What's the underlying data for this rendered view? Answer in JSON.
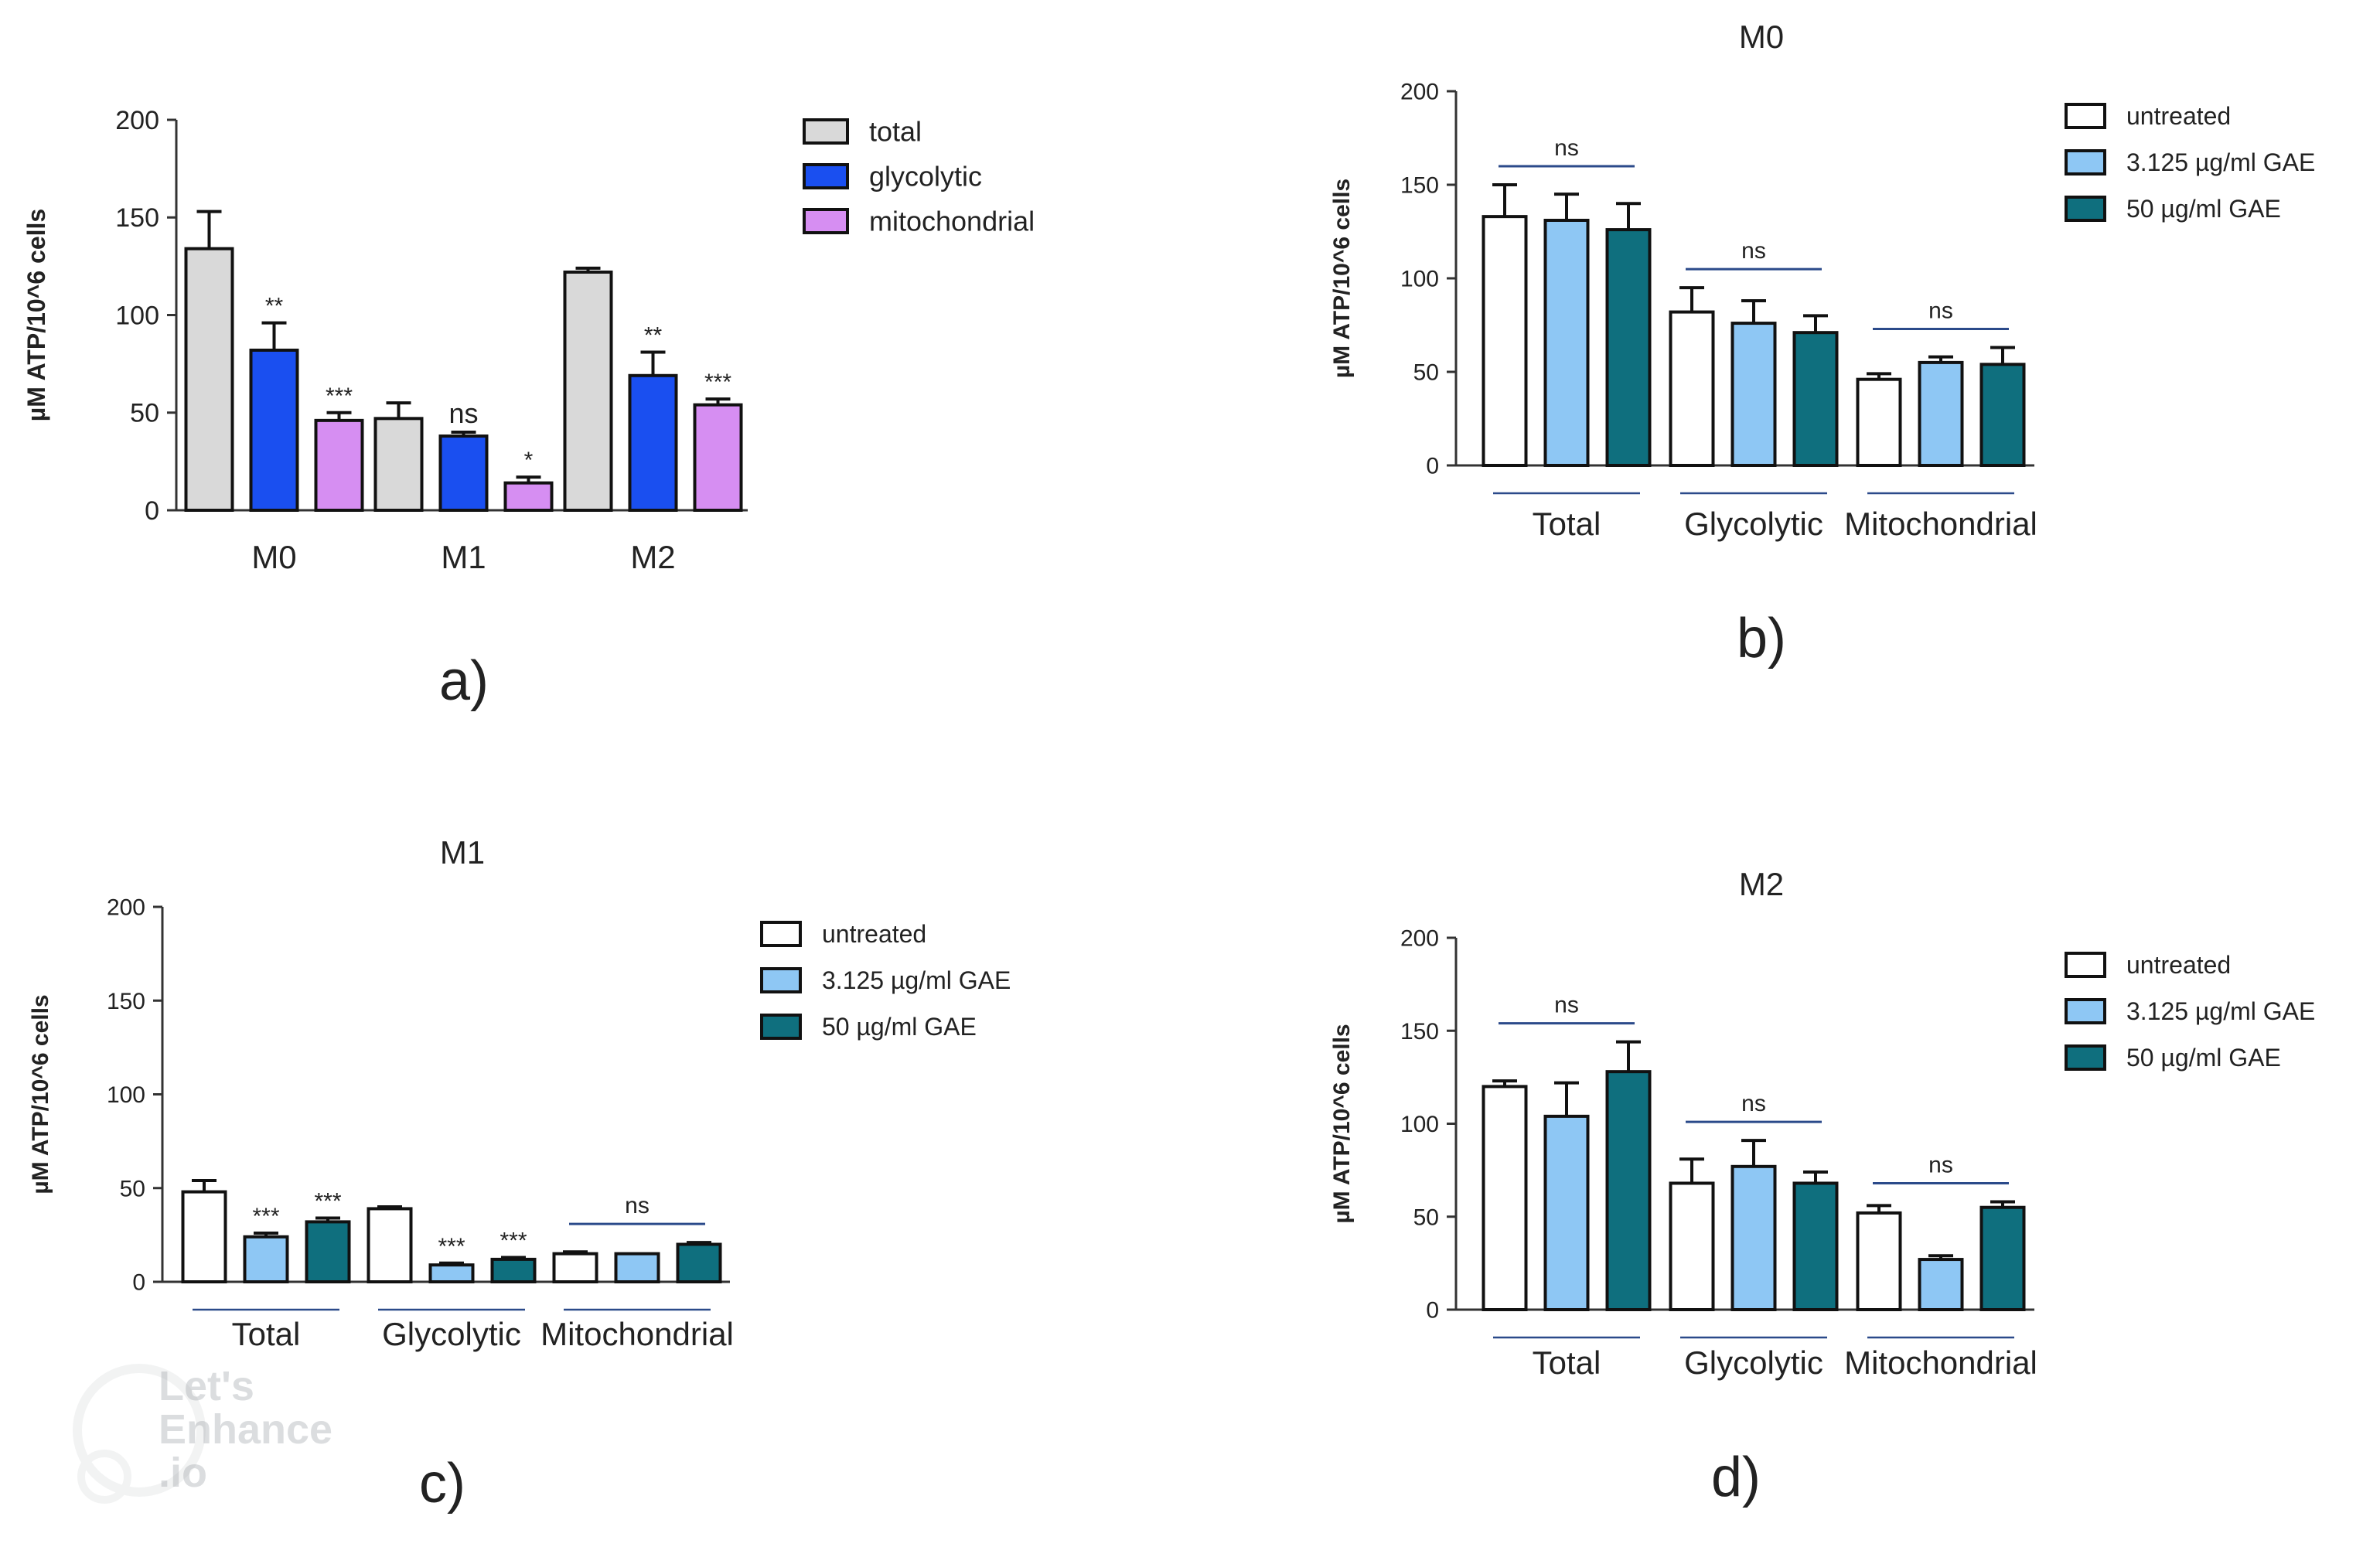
{
  "panels": [
    {
      "id": "a",
      "label": "a)",
      "title": "",
      "legend": [
        "total",
        "glycolytic",
        "mitochondrial"
      ],
      "colors": [
        "#d9d9d9",
        "#1a4ff0",
        "#d68ef2"
      ]
    },
    {
      "id": "b",
      "label": "b)",
      "title": "M0",
      "legend": [
        "untreated",
        "3.125 µg/ml GAE",
        "50 µg/ml GAE"
      ],
      "colors": [
        "#ffffff",
        "#8ec7f4",
        "#0f6f7e"
      ]
    },
    {
      "id": "c",
      "label": "c)",
      "title": "M1",
      "legend": [
        "untreated",
        "3.125 µg/ml GAE",
        "50 µg/ml GAE"
      ],
      "colors": [
        "#ffffff",
        "#8ec7f4",
        "#0f6f7e"
      ]
    },
    {
      "id": "d",
      "label": "d)",
      "title": "M2",
      "legend": [
        "untreated",
        "3.125 µg/ml GAE",
        "50 µg/ml GAE"
      ],
      "colors": [
        "#ffffff",
        "#8ec7f4",
        "#0f6f7e"
      ]
    }
  ],
  "chart_data": [
    {
      "panel": "a",
      "type": "bar",
      "title": "",
      "ylabel": "µM ATP/10^6 cells",
      "xlabel": "",
      "ylim": [
        0,
        200
      ],
      "yticks": [
        "0",
        "50",
        "100",
        "150",
        "200"
      ],
      "categories": [
        "M0",
        "M1",
        "M2"
      ],
      "series": [
        {
          "name": "total",
          "values": [
            134,
            47,
            122
          ],
          "errors": [
            19,
            8,
            2
          ]
        },
        {
          "name": "glycolytic",
          "values": [
            82,
            38,
            69
          ],
          "errors": [
            14,
            2,
            12
          ]
        },
        {
          "name": "mitochondrial",
          "values": [
            46,
            14,
            54
          ],
          "errors": [
            4,
            3,
            3
          ]
        }
      ],
      "significance": [
        [
          "",
          "**",
          "***"
        ],
        [
          "",
          "ns",
          "*"
        ],
        [
          "",
          "**",
          "***"
        ]
      ]
    },
    {
      "panel": "b",
      "type": "bar",
      "title": "M0",
      "ylabel": "µM ATP/10^6 cells",
      "xlabel": "",
      "ylim": [
        0,
        200
      ],
      "yticks": [
        "0",
        "50",
        "100",
        "150",
        "200"
      ],
      "categories": [
        "Total",
        "Glycolytic",
        "Mitochondrial"
      ],
      "series": [
        {
          "name": "untreated",
          "values": [
            133,
            82,
            46
          ],
          "errors": [
            17,
            13,
            3
          ]
        },
        {
          "name": "3.125 µg/ml GAE",
          "values": [
            131,
            76,
            55
          ],
          "errors": [
            14,
            12,
            3
          ]
        },
        {
          "name": "50 µg/ml GAE",
          "values": [
            126,
            71,
            54
          ],
          "errors": [
            14,
            9,
            9
          ]
        }
      ],
      "group_annotations": [
        "ns",
        "ns",
        "ns"
      ]
    },
    {
      "panel": "c",
      "type": "bar",
      "title": "M1",
      "ylabel": "µM ATP/10^6 cells",
      "xlabel": "",
      "ylim": [
        0,
        200
      ],
      "yticks": [
        "0",
        "50",
        "100",
        "150",
        "200"
      ],
      "categories": [
        "Total",
        "Glycolytic",
        "Mitochondrial"
      ],
      "series": [
        {
          "name": "untreated",
          "values": [
            48,
            39,
            15
          ],
          "errors": [
            6,
            1,
            1
          ]
        },
        {
          "name": "3.125 µg/ml GAE",
          "values": [
            24,
            9,
            15
          ],
          "errors": [
            2,
            1,
            0
          ]
        },
        {
          "name": "50 µg/ml GAE",
          "values": [
            32,
            12,
            20
          ],
          "errors": [
            2,
            1,
            1
          ]
        }
      ],
      "significance": [
        [
          "",
          "***",
          "***"
        ],
        [
          "",
          "***",
          "***"
        ],
        [
          "",
          "",
          ""
        ]
      ],
      "group_annotations": [
        "",
        "",
        "ns"
      ]
    },
    {
      "panel": "d",
      "type": "bar",
      "title": "M2",
      "ylabel": "µM ATP/10^6 cells",
      "xlabel": "",
      "ylim": [
        0,
        200
      ],
      "yticks": [
        "0",
        "50",
        "100",
        "150",
        "200"
      ],
      "categories": [
        "Total",
        "Glycolytic",
        "Mitochondrial"
      ],
      "series": [
        {
          "name": "untreated",
          "values": [
            120,
            68,
            52
          ],
          "errors": [
            3,
            13,
            4
          ]
        },
        {
          "name": "3.125 µg/ml GAE",
          "values": [
            104,
            77,
            27
          ],
          "errors": [
            18,
            14,
            2
          ]
        },
        {
          "name": "50 µg/ml GAE",
          "values": [
            128,
            68,
            55
          ],
          "errors": [
            16,
            6,
            3
          ]
        }
      ],
      "group_annotations": [
        "ns",
        "ns",
        "ns"
      ]
    }
  ],
  "watermark": {
    "text_lines": [
      "Let's",
      "Enhance",
      ".io"
    ]
  }
}
